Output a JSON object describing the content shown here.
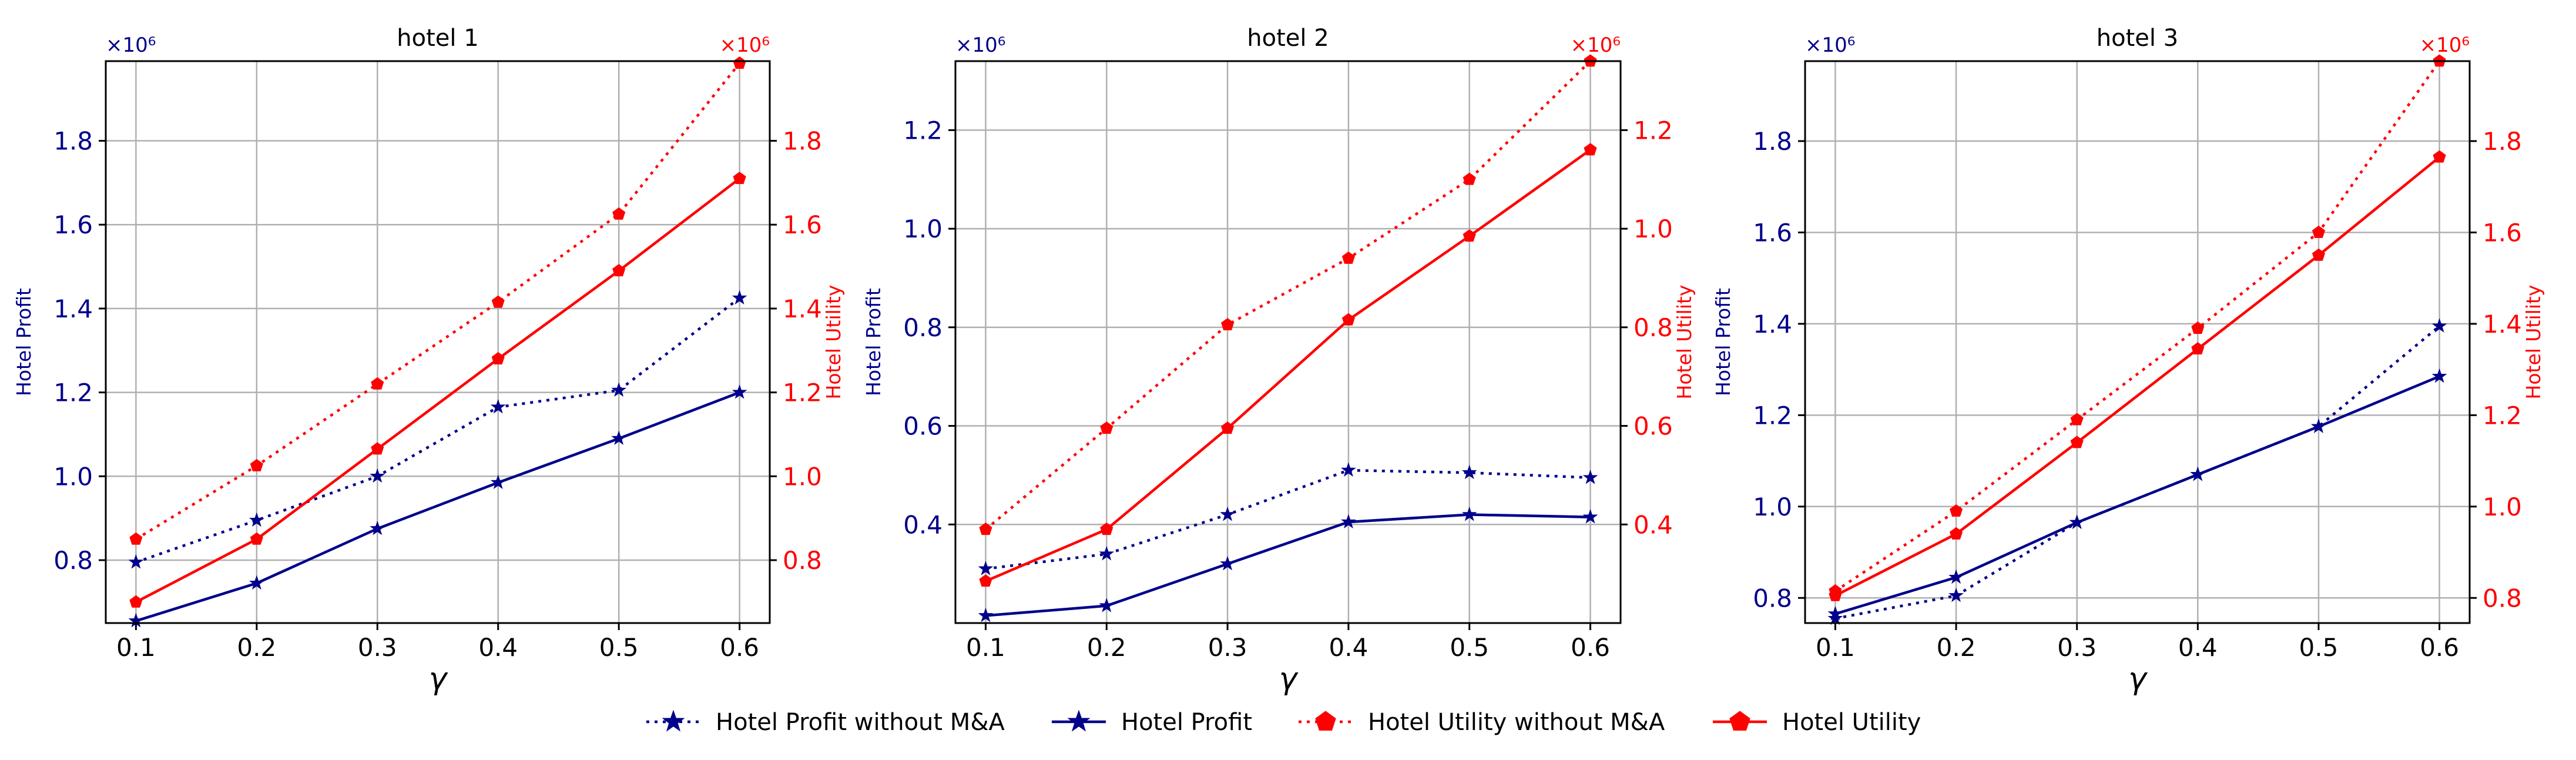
{
  "colors": {
    "profit": "#00008B",
    "utility": "#FF0000",
    "grid": "#b0b0b0",
    "axis": "#000000"
  },
  "legend": {
    "items": [
      {
        "label": "Hotel Profit without M&A",
        "series": "profit_no_ma"
      },
      {
        "label": "Hotel Profit",
        "series": "profit"
      },
      {
        "label": "Hotel Utility without M&A",
        "series": "utility_no_ma"
      },
      {
        "label": "Hotel Utility",
        "series": "utility"
      }
    ]
  },
  "chart_data": [
    {
      "type": "line",
      "title": "hotel 1",
      "xlabel": "γ",
      "ylabel_left": "Hotel Profit",
      "ylabel_right": "Hotel Utility",
      "offset_left": "×10⁶",
      "offset_right": "×10⁶",
      "x": [
        0.1,
        0.2,
        0.3,
        0.4,
        0.5,
        0.6
      ],
      "xlim": [
        0.075,
        0.625
      ],
      "ylim_left": [
        0.65,
        1.99
      ],
      "ylim_right": [
        0.65,
        1.99
      ],
      "yticks_left": [
        0.8,
        1.0,
        1.2,
        1.4,
        1.6,
        1.8
      ],
      "yticks_right": [
        0.8,
        1.0,
        1.2,
        1.4,
        1.6,
        1.8
      ],
      "grid": true,
      "series": [
        {
          "name": "Hotel Profit without M&A",
          "axis": "left",
          "values": [
            0.795,
            0.895,
            1.0,
            1.165,
            1.205,
            1.425
          ]
        },
        {
          "name": "Hotel Profit",
          "axis": "left",
          "values": [
            0.655,
            0.745,
            0.875,
            0.985,
            1.09,
            1.2
          ]
        },
        {
          "name": "Hotel Utility without M&A",
          "axis": "right",
          "values": [
            0.85,
            1.025,
            1.22,
            1.415,
            1.625,
            1.985
          ]
        },
        {
          "name": "Hotel Utility",
          "axis": "right",
          "values": [
            0.7,
            0.85,
            1.065,
            1.28,
            1.49,
            1.71
          ]
        }
      ]
    },
    {
      "type": "line",
      "title": "hotel 2",
      "xlabel": "γ",
      "ylabel_left": "Hotel Profit",
      "ylabel_right": "Hotel Utility",
      "offset_left": "×10⁶",
      "offset_right": "×10⁶",
      "x": [
        0.1,
        0.2,
        0.3,
        0.4,
        0.5,
        0.6
      ],
      "xlim": [
        0.075,
        0.625
      ],
      "ylim_left": [
        0.2,
        1.34
      ],
      "ylim_right": [
        0.2,
        1.34
      ],
      "yticks_left": [
        0.4,
        0.6,
        0.8,
        1.0,
        1.2
      ],
      "yticks_right": [
        0.4,
        0.6,
        0.8,
        1.0,
        1.2
      ],
      "grid": true,
      "series": [
        {
          "name": "Hotel Profit without M&A",
          "axis": "left",
          "values": [
            0.31,
            0.34,
            0.42,
            0.51,
            0.505,
            0.495
          ]
        },
        {
          "name": "Hotel Profit",
          "axis": "left",
          "values": [
            0.215,
            0.235,
            0.32,
            0.405,
            0.42,
            0.415
          ]
        },
        {
          "name": "Hotel Utility without M&A",
          "axis": "right",
          "values": [
            0.39,
            0.595,
            0.805,
            0.94,
            1.1,
            1.34
          ]
        },
        {
          "name": "Hotel Utility",
          "axis": "right",
          "values": [
            0.285,
            0.39,
            0.595,
            0.815,
            0.985,
            1.16
          ]
        }
      ]
    },
    {
      "type": "line",
      "title": "hotel 3",
      "xlabel": "γ",
      "ylabel_left": "Hotel Profit",
      "ylabel_right": "Hotel Utility",
      "offset_left": "×10⁶",
      "offset_right": "×10⁶",
      "x": [
        0.1,
        0.2,
        0.3,
        0.4,
        0.5,
        0.6
      ],
      "xlim": [
        0.075,
        0.625
      ],
      "ylim_left": [
        0.745,
        1.975
      ],
      "ylim_right": [
        0.745,
        1.975
      ],
      "yticks_left": [
        0.8,
        1.0,
        1.2,
        1.4,
        1.6,
        1.8
      ],
      "yticks_right": [
        0.8,
        1.0,
        1.2,
        1.4,
        1.6,
        1.8
      ],
      "grid": true,
      "series": [
        {
          "name": "Hotel Profit without M&A",
          "axis": "left",
          "values": [
            0.755,
            0.805,
            0.965,
            1.07,
            1.175,
            1.395
          ]
        },
        {
          "name": "Hotel Profit",
          "axis": "left",
          "values": [
            0.765,
            0.845,
            0.965,
            1.07,
            1.175,
            1.285
          ]
        },
        {
          "name": "Hotel Utility without M&A",
          "axis": "right",
          "values": [
            0.815,
            0.99,
            1.19,
            1.39,
            1.6,
            1.975
          ]
        },
        {
          "name": "Hotel Utility",
          "axis": "right",
          "values": [
            0.805,
            0.94,
            1.14,
            1.345,
            1.55,
            1.765
          ]
        }
      ]
    }
  ]
}
